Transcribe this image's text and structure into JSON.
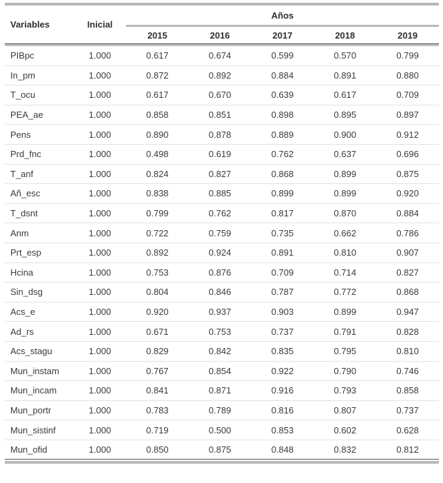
{
  "table": {
    "header": {
      "variables": "Variables",
      "inicial": "Inicial",
      "anos": "Años"
    },
    "years": [
      "2015",
      "2016",
      "2017",
      "2018",
      "2019"
    ],
    "rows": [
      {
        "variable": "PIBpc",
        "inicial": "1.000",
        "values": [
          "0.617",
          "0.674",
          "0.599",
          "0.570",
          "0.799"
        ]
      },
      {
        "variable": "In_pm",
        "inicial": "1.000",
        "values": [
          "0.872",
          "0.892",
          "0.884",
          "0.891",
          "0.880"
        ]
      },
      {
        "variable": "T_ocu",
        "inicial": "1.000",
        "values": [
          "0.617",
          "0.670",
          "0.639",
          "0.617",
          "0.709"
        ]
      },
      {
        "variable": "PEA_ae",
        "inicial": "1.000",
        "values": [
          "0.858",
          "0.851",
          "0.898",
          "0.895",
          "0.897"
        ]
      },
      {
        "variable": "Pens",
        "inicial": "1.000",
        "values": [
          "0.890",
          "0.878",
          "0.889",
          "0.900",
          "0.912"
        ]
      },
      {
        "variable": "Prd_fnc",
        "inicial": "1.000",
        "values": [
          "0.498",
          "0.619",
          "0.762",
          "0.637",
          "0.696"
        ]
      },
      {
        "variable": "T_anf",
        "inicial": "1.000",
        "values": [
          "0.824",
          "0.827",
          "0.868",
          "0.899",
          "0.875"
        ]
      },
      {
        "variable": "Añ_esc",
        "inicial": "1.000",
        "values": [
          "0.838",
          "0.885",
          "0.899",
          "0.899",
          "0.920"
        ]
      },
      {
        "variable": "T_dsnt",
        "inicial": "1.000",
        "values": [
          "0.799",
          "0.762",
          "0.817",
          "0.870",
          "0.884"
        ]
      },
      {
        "variable": "Anm",
        "inicial": "1.000",
        "values": [
          "0.722",
          "0.759",
          "0.735",
          "0.662",
          "0.786"
        ]
      },
      {
        "variable": "Prt_esp",
        "inicial": "1.000",
        "values": [
          "0.892",
          "0.924",
          "0.891",
          "0.810",
          "0.907"
        ]
      },
      {
        "variable": "Hcina",
        "inicial": "1.000",
        "values": [
          "0.753",
          "0.876",
          "0.709",
          "0.714",
          "0.827"
        ]
      },
      {
        "variable": "Sin_dsg",
        "inicial": "1.000",
        "values": [
          "0.804",
          "0.846",
          "0.787",
          "0.772",
          "0.868"
        ]
      },
      {
        "variable": "Acs_e",
        "inicial": "1.000",
        "values": [
          "0.920",
          "0.937",
          "0.903",
          "0.899",
          "0.947"
        ]
      },
      {
        "variable": "Ad_rs",
        "inicial": "1.000",
        "values": [
          "0.671",
          "0.753",
          "0.737",
          "0.791",
          "0.828"
        ]
      },
      {
        "variable": "Acs_stagu",
        "inicial": "1.000",
        "values": [
          "0.829",
          "0.842",
          "0.835",
          "0.795",
          "0.810"
        ]
      },
      {
        "variable": "Mun_instam",
        "inicial": "1.000",
        "values": [
          "0.767",
          "0.854",
          "0.922",
          "0.790",
          "0.746"
        ]
      },
      {
        "variable": "Mun_incam",
        "inicial": "1.000",
        "values": [
          "0.841",
          "0.871",
          "0.916",
          "0.793",
          "0.858"
        ]
      },
      {
        "variable": "Mun_portr",
        "inicial": "1.000",
        "values": [
          "0.783",
          "0.789",
          "0.816",
          "0.807",
          "0.737"
        ]
      },
      {
        "variable": "Mun_sistinf",
        "inicial": "1.000",
        "values": [
          "0.719",
          "0.500",
          "0.853",
          "0.602",
          "0.628"
        ]
      },
      {
        "variable": "Mun_ofid",
        "inicial": "1.000",
        "values": [
          "0.850",
          "0.875",
          "0.848",
          "0.832",
          "0.812"
        ]
      }
    ]
  },
  "colors": {
    "rule_gray": "#b9b9b9",
    "rule_dark": "#4f4f4f",
    "row_divider": "#e2e2e2",
    "text": "#3a3a3a"
  }
}
